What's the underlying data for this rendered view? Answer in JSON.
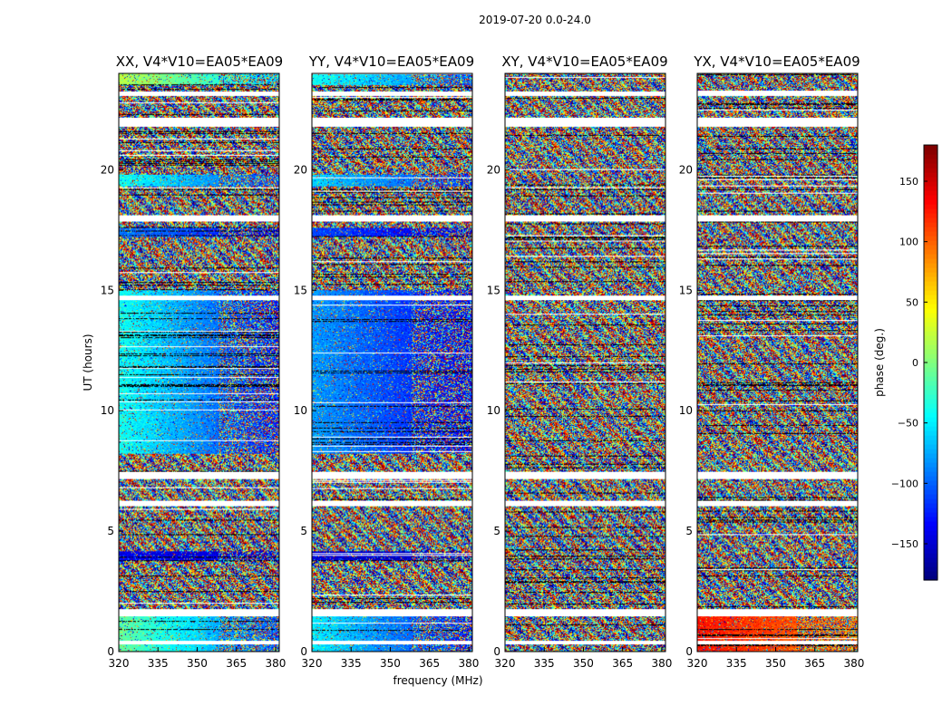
{
  "chart_data": {
    "type": "heatmap",
    "suptitle": "2019-07-20 0.0-24.0",
    "xlabel": "frequency (MHz)",
    "ylabel": "UT (hours)",
    "xlim": [
      320,
      381.4
    ],
    "ylim": [
      0,
      24
    ],
    "x_ticks": [
      320,
      335,
      350,
      365,
      380
    ],
    "x_tick_labels": [
      "320",
      "335",
      "350",
      "365",
      "380"
    ],
    "y_ticks": [
      0,
      5,
      10,
      15,
      20
    ],
    "y_tick_labels": [
      "0",
      "5",
      "10",
      "15",
      "20"
    ],
    "colormap": "jet",
    "colorbar": {
      "label": "phase (deg.)",
      "range": [
        -180,
        180
      ],
      "ticks": [
        -150,
        -100,
        -50,
        0,
        50,
        100,
        150
      ],
      "tick_labels": [
        "−150",
        "−100",
        "−50",
        "0",
        "50",
        "100",
        "150"
      ]
    },
    "flagged_ut_bands": [
      [
        0.3,
        0.45
      ],
      [
        1.45,
        1.75
      ],
      [
        6.05,
        6.25
      ],
      [
        7.15,
        7.45
      ],
      [
        14.6,
        14.78
      ],
      [
        17.85,
        18.1
      ],
      [
        21.8,
        22.15
      ],
      [
        23.05,
        23.25
      ]
    ],
    "panels": [
      {
        "title": "XX, V4*V10=EA05*EA09",
        "baseline": "EA05*EA09",
        "polarization": "XX",
        "coherent_ut_ranges": [
          {
            "ut": [
              0.0,
              1.45
            ],
            "phase_start": -10,
            "phase_end": -110
          },
          {
            "ut": [
              3.8,
              4.15
            ],
            "phase_start": -140,
            "phase_end": -150
          },
          {
            "ut": [
              8.2,
              15.0
            ],
            "phase_start": -40,
            "phase_end": -130
          },
          {
            "ut": [
              17.2,
              17.6
            ],
            "phase_start": -90,
            "phase_end": -140
          },
          {
            "ut": [
              19.3,
              19.8
            ],
            "phase_start": -40,
            "phase_end": -110
          },
          {
            "ut": [
              23.5,
              24.0
            ],
            "phase_start": 20,
            "phase_end": -60
          }
        ]
      },
      {
        "title": "YY, V4*V10=EA05*EA09",
        "baseline": "EA05*EA09",
        "polarization": "YY",
        "coherent_ut_ranges": [
          {
            "ut": [
              0.0,
              1.45
            ],
            "phase_start": -50,
            "phase_end": -130
          },
          {
            "ut": [
              3.8,
              4.15
            ],
            "phase_start": -150,
            "phase_end": -160
          },
          {
            "ut": [
              8.2,
              15.0
            ],
            "phase_start": -80,
            "phase_end": -140
          },
          {
            "ut": [
              17.2,
              17.6
            ],
            "phase_start": -110,
            "phase_end": -150
          },
          {
            "ut": [
              19.3,
              19.8
            ],
            "phase_start": -60,
            "phase_end": -120
          },
          {
            "ut": [
              23.5,
              24.0
            ],
            "phase_start": -40,
            "phase_end": -100
          }
        ]
      },
      {
        "title": "XY, V4*V10=EA05*EA09",
        "baseline": "EA05*EA09",
        "polarization": "XY",
        "coherent_ut_ranges": []
      },
      {
        "title": "YX, V4*V10=EA05*EA09",
        "baseline": "EA05*EA09",
        "polarization": "YX",
        "coherent_ut_ranges": [
          {
            "ut": [
              0.0,
              1.45
            ],
            "phase_start": 130,
            "phase_end": 90
          }
        ]
      }
    ]
  }
}
